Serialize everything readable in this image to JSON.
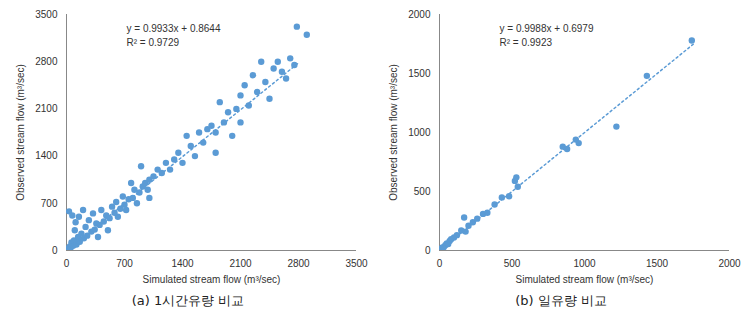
{
  "chart_data": [
    {
      "type": "scatter",
      "caption": "(a) 1시간유량 비교",
      "xlabel": "Simulated stream flow (m³/sec)",
      "ylabel": "Observed stream flow (m³/sec)",
      "color": "#5b9bd5",
      "marker": "circle",
      "grid": false,
      "xlim": [
        0,
        3500
      ],
      "ylim": [
        0,
        3500
      ],
      "xticks": [
        0,
        700,
        1400,
        2100,
        2800,
        3500
      ],
      "yticks": [
        0,
        700,
        1400,
        2100,
        2800,
        3500
      ],
      "annotations": [
        "y = 0.9933x + 0.8644",
        "R² = 0.9729"
      ],
      "trendline": {
        "x": [
          0,
          2800
        ],
        "y": [
          1,
          2782
        ],
        "line_style": "dotted"
      },
      "x": [
        10,
        20,
        30,
        40,
        50,
        60,
        80,
        90,
        100,
        110,
        120,
        140,
        150,
        160,
        180,
        200,
        210,
        230,
        250,
        270,
        300,
        320,
        340,
        360,
        380,
        400,
        420,
        450,
        480,
        500,
        520,
        550,
        580,
        600,
        620,
        650,
        680,
        700,
        720,
        750,
        780,
        800,
        820,
        850,
        880,
        900,
        920,
        950,
        980,
        1000,
        1050,
        1100,
        1150,
        1200,
        1250,
        1300,
        1350,
        1400,
        1450,
        1500,
        1550,
        1600,
        1650,
        1700,
        1750,
        1800,
        1850,
        1900,
        1950,
        2000,
        2050,
        2100,
        2150,
        2200,
        2250,
        2300,
        2350,
        2400,
        2450,
        2500,
        2550,
        2600,
        2650,
        2700,
        2750,
        2780,
        2900,
        1800,
        2100,
        1000,
        30,
        70
      ],
      "y": [
        5,
        30,
        15,
        60,
        40,
        120,
        70,
        150,
        300,
        420,
        90,
        200,
        500,
        130,
        250,
        600,
        180,
        350,
        220,
        450,
        280,
        550,
        310,
        400,
        200,
        380,
        600,
        430,
        520,
        300,
        480,
        650,
        560,
        720,
        500,
        620,
        800,
        680,
        600,
        760,
        1000,
        780,
        900,
        700,
        860,
        1250,
        950,
        1000,
        900,
        1050,
        1100,
        1200,
        1150,
        1300,
        1200,
        1350,
        1450,
        1300,
        1700,
        1550,
        1400,
        1750,
        1600,
        1800,
        1850,
        1750,
        2200,
        1900,
        2050,
        1700,
        2100,
        2300,
        2450,
        2150,
        2600,
        2350,
        2800,
        2500,
        2250,
        2700,
        2800,
        2650,
        2550,
        2850,
        2750,
        3320,
        3200,
        1450,
        1900,
        780,
        580,
        520
      ]
    },
    {
      "type": "scatter",
      "caption": "(b) 일유량 비교",
      "xlabel": "Simulated stream flow (m³/sec)",
      "ylabel": "Observed stream flow (m³/sec)",
      "color": "#5b9bd5",
      "marker": "circle",
      "grid": false,
      "xlim": [
        0,
        2000
      ],
      "ylim": [
        0,
        2000
      ],
      "xticks": [
        0,
        500,
        1000,
        1500,
        2000
      ],
      "yticks": [
        0,
        500,
        1000,
        1500,
        2000
      ],
      "annotations": [
        "y = 0.9988x + 0.6979",
        "R² = 0.9923"
      ],
      "trendline": {
        "x": [
          0,
          1750
        ],
        "y": [
          1,
          1748
        ],
        "line_style": "dotted"
      },
      "x": [
        2,
        5,
        10,
        15,
        20,
        30,
        40,
        50,
        60,
        70,
        80,
        100,
        120,
        150,
        170,
        180,
        200,
        230,
        260,
        300,
        330,
        380,
        430,
        480,
        520,
        530,
        540,
        850,
        880,
        940,
        960,
        1220,
        1430,
        1740
      ],
      "y": [
        1,
        8,
        12,
        10,
        25,
        28,
        45,
        60,
        55,
        80,
        95,
        110,
        130,
        170,
        280,
        160,
        210,
        240,
        270,
        310,
        320,
        390,
        450,
        460,
        590,
        620,
        540,
        880,
        860,
        940,
        910,
        1050,
        1480,
        1780
      ]
    }
  ]
}
